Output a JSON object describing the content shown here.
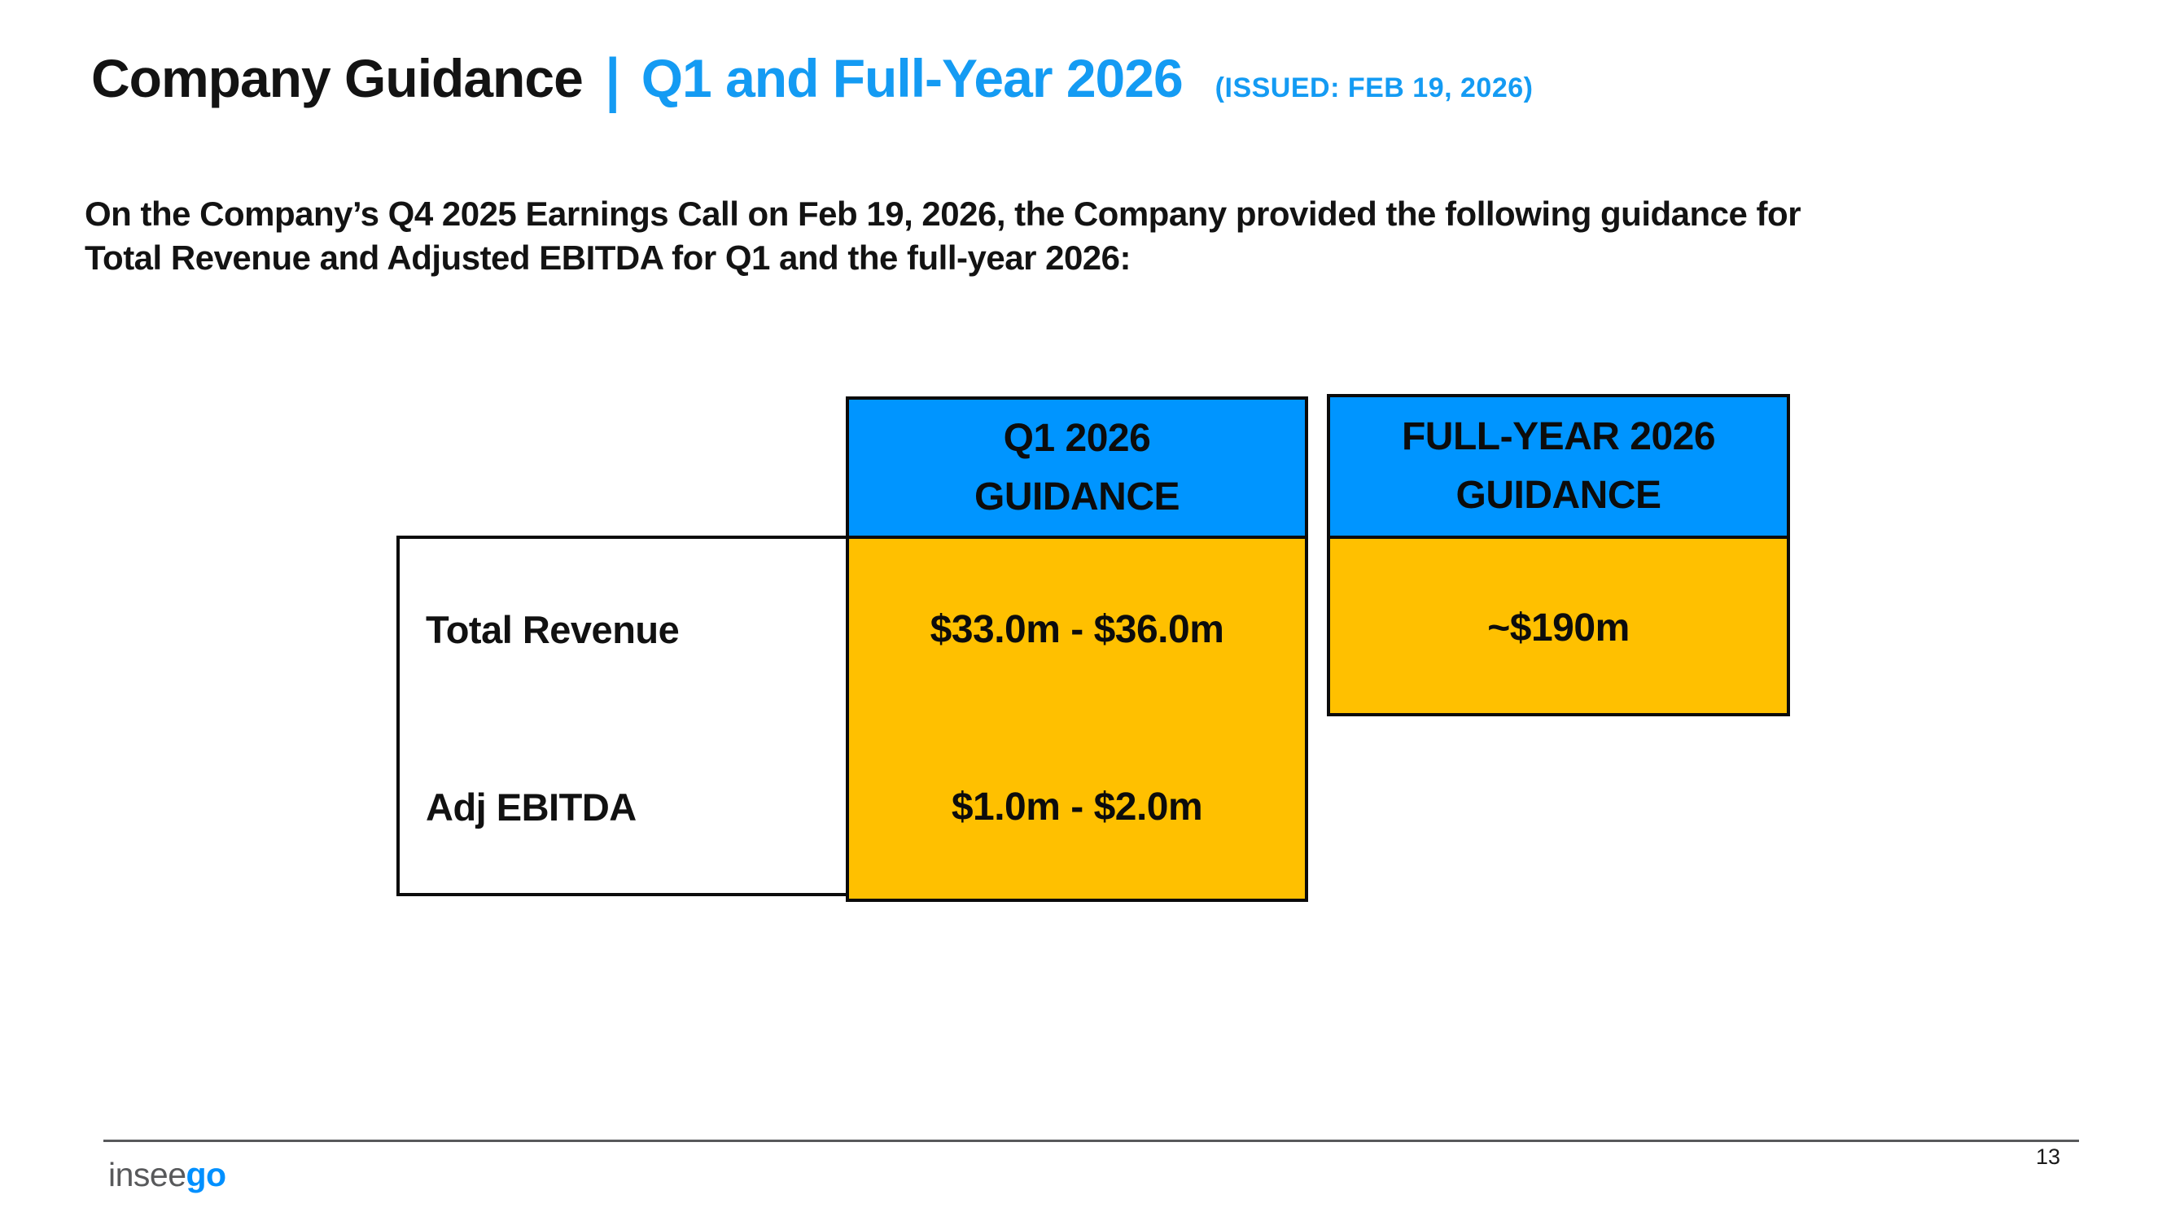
{
  "title": {
    "main": "Company Guidance",
    "separator": "|",
    "highlight": "Q1 and Full-Year 2026",
    "issued": "(ISSUED: FEB 19, 2026)"
  },
  "intro": {
    "line1": "On the Company’s Q4 2025 Earnings Call on Feb 19, 2026, the Company provided the following guidance for",
    "line2": "Total Revenue and Adjusted EBITDA for Q1 and the full-year 2026:"
  },
  "guidance_table": {
    "columns": [
      {
        "id": "q1",
        "header_line1": "Q1 2026",
        "header_line2": "GUIDANCE"
      },
      {
        "id": "full_year",
        "header_line1": "FULL-YEAR 2026",
        "header_line2": "GUIDANCE"
      }
    ],
    "rows": [
      {
        "metric": "Total Revenue",
        "q1_value": "$33.0m - $36.0m",
        "full_year_value": "~$190m"
      },
      {
        "metric": "Adj EBITDA",
        "q1_value": "$1.0m - $2.0m",
        "full_year_value": ""
      }
    ]
  },
  "footer": {
    "logo_part1": "insee",
    "logo_part2": "go",
    "page_number": "13"
  },
  "colors": {
    "header_blue": "#0095FF",
    "cell_yellow": "#FFC000",
    "title_blue": "#149BF3",
    "logo_gray": "#58595B",
    "logo_blue": "#0090FF",
    "border_black": "#0B0B0B",
    "footer_line_gray": "#58595B"
  }
}
